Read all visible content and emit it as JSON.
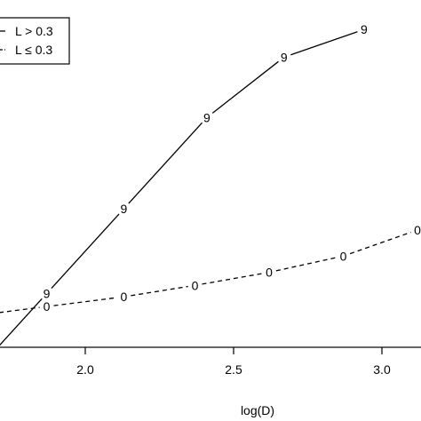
{
  "chart_data": {
    "type": "line",
    "xlabel": "log(D)",
    "x_ticks": [
      2.0,
      2.5,
      3.0
    ],
    "x_tick_labels": [
      "2.0",
      "2.5",
      "3.0"
    ],
    "xlim": [
      1.7,
      3.15
    ],
    "ylim": [
      0,
      1
    ],
    "legend": {
      "position": "top-left",
      "entries": [
        "L > 0.3",
        "L ≤ 0.3"
      ]
    },
    "series": [
      {
        "name": "L > 0.3",
        "marker": "9",
        "line_style": "solid",
        "x": [
          1.87,
          2.13,
          2.41,
          2.67,
          2.94
        ],
        "y": [
          0.135,
          0.395,
          0.675,
          0.86,
          0.945
        ]
      },
      {
        "name": "L ≤ 0.3",
        "marker": "0",
        "line_style": "dashed",
        "x": [
          1.87,
          2.13,
          2.37,
          2.62,
          2.87,
          3.12
        ],
        "y": [
          0.095,
          0.125,
          0.16,
          0.2,
          0.25,
          0.33
        ]
      }
    ]
  }
}
